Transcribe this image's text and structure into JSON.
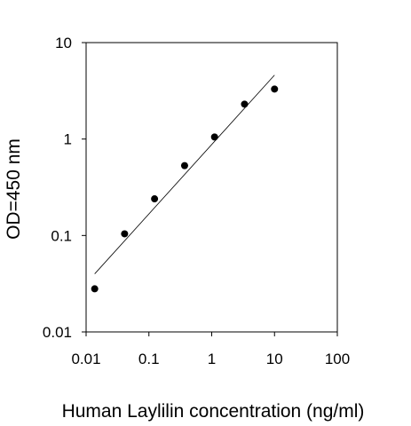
{
  "chart_data": {
    "type": "scatter",
    "xlabel": "Human Laylilin concentration (ng/ml)",
    "ylabel": "OD=450 nm",
    "xscale": "log",
    "yscale": "log",
    "xlim": [
      0.01,
      100
    ],
    "ylim": [
      0.01,
      10
    ],
    "xticks": [
      0.01,
      0.1,
      1,
      10,
      100
    ],
    "xtick_labels": [
      "0.01",
      "0.1",
      "1",
      "10",
      "100"
    ],
    "yticks": [
      0.01,
      0.1,
      1,
      10
    ],
    "ytick_labels": [
      "0.01",
      "0.1",
      "1",
      "10"
    ],
    "grid": false,
    "legend": "none",
    "series": [
      {
        "points": [
          {
            "x": 0.0137,
            "y": 0.028
          },
          {
            "x": 0.041,
            "y": 0.104
          },
          {
            "x": 0.123,
            "y": 0.24
          },
          {
            "x": 0.37,
            "y": 0.53
          },
          {
            "x": 1.11,
            "y": 1.05
          },
          {
            "x": 3.33,
            "y": 2.3
          },
          {
            "x": 10,
            "y": 3.3
          }
        ]
      }
    ],
    "trendline": {
      "x": [
        0.0137,
        10
      ],
      "y": [
        0.04,
        4.6
      ]
    },
    "colors": {
      "points": "#000000",
      "line": "#000000",
      "axes": "#000000"
    }
  }
}
